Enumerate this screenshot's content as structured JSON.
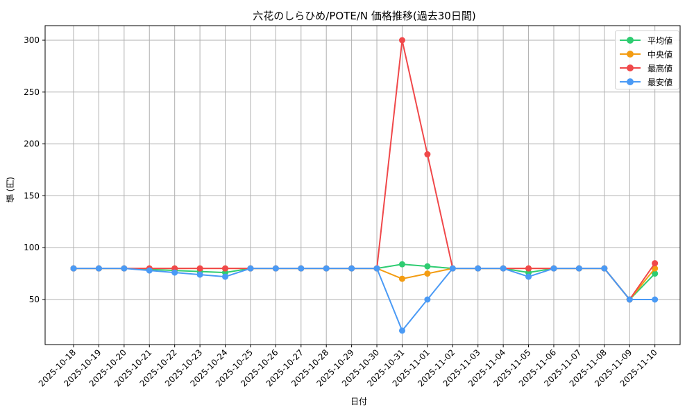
{
  "chart_data": {
    "type": "line",
    "title": "六花のしらひめ/POTE/N 価格推移(過去30日間)",
    "xlabel": "日付",
    "ylabel": "値 (円)",
    "ylim": [
      10,
      315
    ],
    "yticks": [
      50,
      100,
      150,
      200,
      250,
      300
    ],
    "grid": true,
    "legend_position": "upper right",
    "x": [
      "2025-10-18",
      "2025-10-19",
      "2025-10-20",
      "2025-10-21",
      "2025-10-22",
      "2025-10-23",
      "2025-10-24",
      "2025-10-25",
      "2025-10-26",
      "2025-10-27",
      "2025-10-28",
      "2025-10-29",
      "2025-10-30",
      "2025-10-31",
      "2025-11-01",
      "2025-11-02",
      "2025-11-03",
      "2025-11-04",
      "2025-11-05",
      "2025-11-06",
      "2025-11-07",
      "2025-11-08",
      "2025-11-09",
      "2025-11-10"
    ],
    "series": [
      {
        "name": "平均値",
        "color": "#2ecc71",
        "values": [
          80,
          80,
          80,
          79,
          78,
          77,
          76,
          80,
          80,
          80,
          80,
          80,
          80,
          84,
          82,
          80,
          80,
          80,
          76,
          80,
          80,
          80,
          50,
          75
        ]
      },
      {
        "name": "中央値",
        "color": "#f39c12",
        "values": [
          80,
          80,
          80,
          80,
          80,
          80,
          80,
          80,
          80,
          80,
          80,
          80,
          80,
          70,
          75,
          80,
          80,
          80,
          80,
          80,
          80,
          80,
          50,
          80
        ]
      },
      {
        "name": "最高値",
        "color": "#f0484a",
        "values": [
          80,
          80,
          80,
          80,
          80,
          80,
          80,
          80,
          80,
          80,
          80,
          80,
          80,
          300,
          190,
          80,
          80,
          80,
          80,
          80,
          80,
          80,
          50,
          85
        ]
      },
      {
        "name": "最安値",
        "color": "#4a9af5",
        "values": [
          80,
          80,
          80,
          78,
          76,
          74,
          72,
          80,
          80,
          80,
          80,
          80,
          80,
          20,
          50,
          80,
          80,
          80,
          72,
          80,
          80,
          80,
          50,
          50
        ]
      }
    ]
  }
}
